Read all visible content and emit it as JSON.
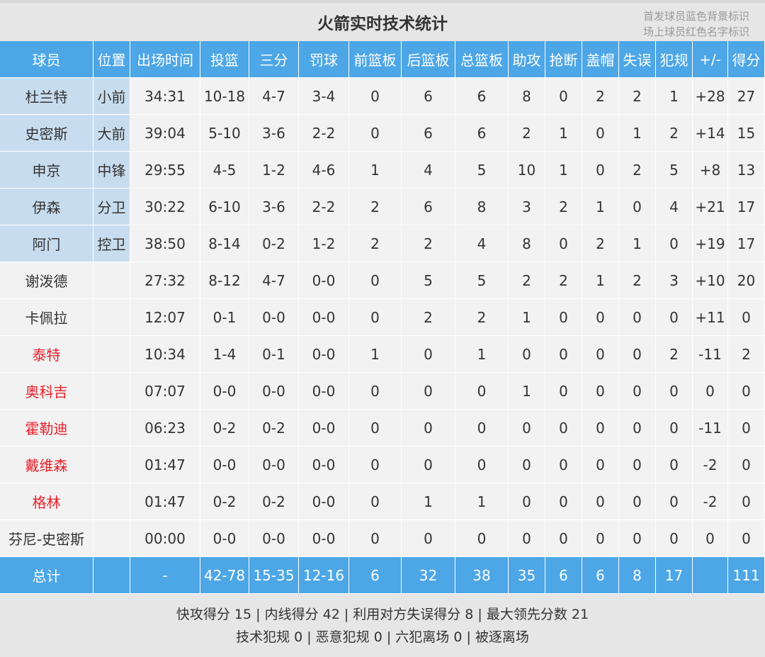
{
  "title": "火箭实时技术统计",
  "note": [
    "首发球员蓝色背景标识",
    "场上球员红色名字标识"
  ],
  "table": {
    "header": [
      "球员",
      "位置",
      "出场时间",
      "投篮",
      "三分",
      "罚球",
      "前篮板",
      "后篮板",
      "总篮板",
      "助攻",
      "抢断",
      "盖帽",
      "失误",
      "犯规",
      "+/-",
      "得分"
    ],
    "rows": [
      {
        "starter": true,
        "on_court": false,
        "cells": [
          "杜兰特",
          "小前",
          "34:31",
          "10-18",
          "4-7",
          "3-4",
          "0",
          "6",
          "6",
          "8",
          "0",
          "2",
          "2",
          "1",
          "+28",
          "27"
        ]
      },
      {
        "starter": true,
        "on_court": false,
        "cells": [
          "史密斯",
          "大前",
          "39:04",
          "5-10",
          "3-6",
          "2-2",
          "0",
          "6",
          "6",
          "2",
          "1",
          "0",
          "1",
          "2",
          "+14",
          "15"
        ]
      },
      {
        "starter": true,
        "on_court": false,
        "cells": [
          "申京",
          "中锋",
          "29:55",
          "4-5",
          "1-2",
          "4-6",
          "1",
          "4",
          "5",
          "10",
          "1",
          "0",
          "2",
          "5",
          "+8",
          "13"
        ]
      },
      {
        "starter": true,
        "on_court": false,
        "cells": [
          "伊森",
          "分卫",
          "30:22",
          "6-10",
          "3-6",
          "2-2",
          "2",
          "6",
          "8",
          "3",
          "2",
          "1",
          "0",
          "4",
          "+21",
          "17"
        ]
      },
      {
        "starter": true,
        "on_court": false,
        "cells": [
          "阿门",
          "控卫",
          "38:50",
          "8-14",
          "0-2",
          "1-2",
          "2",
          "2",
          "4",
          "8",
          "0",
          "2",
          "1",
          "0",
          "+19",
          "17"
        ]
      },
      {
        "starter": false,
        "on_court": false,
        "cells": [
          "谢泼德",
          null,
          "27:32",
          "8-12",
          "4-7",
          "0-0",
          "0",
          "5",
          "5",
          "2",
          "2",
          "1",
          "2",
          "3",
          "+10",
          "20"
        ]
      },
      {
        "starter": false,
        "on_court": false,
        "cells": [
          "卡佩拉",
          null,
          "12:07",
          "0-1",
          "0-0",
          "0-0",
          "0",
          "2",
          "2",
          "1",
          "0",
          "0",
          "0",
          "0",
          "+11",
          "0"
        ]
      },
      {
        "starter": false,
        "on_court": true,
        "cells": [
          "泰特",
          null,
          "10:34",
          "1-4",
          "0-1",
          "0-0",
          "1",
          "0",
          "1",
          "0",
          "0",
          "0",
          "0",
          "2",
          "-11",
          "2"
        ]
      },
      {
        "starter": false,
        "on_court": true,
        "cells": [
          "奥科吉",
          null,
          "07:07",
          "0-0",
          "0-0",
          "0-0",
          "0",
          "0",
          "0",
          "1",
          "0",
          "0",
          "0",
          "0",
          "0",
          "0"
        ]
      },
      {
        "starter": false,
        "on_court": true,
        "cells": [
          "霍勒迪",
          null,
          "06:23",
          "0-2",
          "0-2",
          "0-0",
          "0",
          "0",
          "0",
          "0",
          "0",
          "0",
          "0",
          "0",
          "-11",
          "0"
        ]
      },
      {
        "starter": false,
        "on_court": true,
        "cells": [
          "戴维森",
          null,
          "01:47",
          "0-0",
          "0-0",
          "0-0",
          "0",
          "0",
          "0",
          "0",
          "0",
          "0",
          "0",
          "0",
          "-2",
          "0"
        ]
      },
      {
        "starter": false,
        "on_court": true,
        "cells": [
          "格林",
          null,
          "01:47",
          "0-2",
          "0-2",
          "0-0",
          "0",
          "1",
          "1",
          "0",
          "0",
          "0",
          "0",
          "0",
          "-2",
          "0"
        ]
      },
      {
        "starter": false,
        "on_court": false,
        "cells": [
          "芬尼-史密斯",
          null,
          "00:00",
          "0-0",
          "0-0",
          "0-0",
          "0",
          "0",
          "0",
          "0",
          "0",
          "0",
          "0",
          "0",
          "0",
          "0"
        ]
      }
    ],
    "total": [
      "总计",
      null,
      "-",
      "42-78",
      "15-35",
      "12-16",
      "6",
      "32",
      "38",
      "35",
      "6",
      "6",
      "8",
      "17",
      null,
      "111"
    ]
  },
  "footer": {
    "lines": [
      "快攻得分 15 | 内线得分 42 | 利用对方失误得分 8 | 最大领先分数 21",
      "技术犯规 0 | 恶意犯规 0 | 六犯离场 0 | 被逐离场"
    ]
  }
}
